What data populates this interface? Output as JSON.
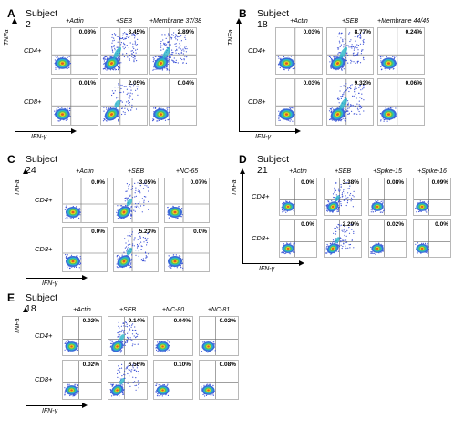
{
  "panels": [
    {
      "letter": "A",
      "subject": "Subject 2",
      "x_axis": "IFN-γ",
      "y_axis": "TNFa",
      "rows": [
        "CD4+",
        "CD8+"
      ],
      "columns": [
        "+Actin",
        "+SEB",
        "+Membrane 37/38"
      ],
      "percentages": [
        [
          "0.03%",
          "3.45%",
          "2.89%"
        ],
        [
          "0.01%",
          "2.05%",
          "0.04%"
        ]
      ],
      "densities": [
        [
          "low",
          "high",
          "high"
        ],
        [
          "low",
          "med",
          "low"
        ]
      ]
    },
    {
      "letter": "B",
      "subject": "Subject 18",
      "x_axis": "IFN-γ",
      "y_axis": "TNFa",
      "rows": [
        "CD4+",
        "CD8+"
      ],
      "columns": [
        "+Actin",
        "+SEB",
        "+Membrane 44/45"
      ],
      "percentages": [
        [
          "0.03%",
          "8.77%",
          "0.24%"
        ],
        [
          "0.03%",
          "9.32%",
          "0.06%"
        ]
      ],
      "densities": [
        [
          "low",
          "high",
          "low"
        ],
        [
          "low",
          "high",
          "low"
        ]
      ]
    },
    {
      "letter": "C",
      "subject": "Subject 24",
      "x_axis": "IFN-γ",
      "y_axis": "TNFa",
      "rows": [
        "CD4+",
        "CD8+"
      ],
      "columns": [
        "+Actin",
        "+SEB",
        "+NC-65"
      ],
      "percentages": [
        [
          "0.0%",
          "3.05%",
          "0.07%"
        ],
        [
          "0.0%",
          "5.23%",
          "0.0%"
        ]
      ],
      "densities": [
        [
          "low",
          "med",
          "low"
        ],
        [
          "low",
          "med",
          "low"
        ]
      ]
    },
    {
      "letter": "D",
      "subject": "Subject 21",
      "x_axis": "IFN-γ",
      "y_axis": "TNFa",
      "rows": [
        "CD4+",
        "CD8+"
      ],
      "columns": [
        "+Actin",
        "+SEB",
        "+Spike-15",
        "+Spike-16"
      ],
      "percentages": [
        [
          "0.0%",
          "3.38%",
          "0.08%",
          "0.09%"
        ],
        [
          "0.0%",
          "2.29%",
          "0.02%",
          "0.0%"
        ]
      ],
      "densities": [
        [
          "low",
          "med",
          "low",
          "low"
        ],
        [
          "low",
          "med",
          "low",
          "low"
        ]
      ]
    },
    {
      "letter": "E",
      "subject": "Subject 18",
      "x_axis": "IFN-γ",
      "y_axis": "TNFa",
      "rows": [
        "CD4+",
        "CD8+"
      ],
      "columns": [
        "+Actin",
        "+SEB",
        "+NC-80",
        "+NC-81"
      ],
      "percentages": [
        [
          "0.02%",
          "9.14%",
          "0.04%",
          "0.02%"
        ],
        [
          "0.02%",
          "6.56%",
          "0.10%",
          "0.08%"
        ]
      ],
      "densities": [
        [
          "low",
          "med",
          "low",
          "low"
        ],
        [
          "low",
          "med",
          "low",
          "low"
        ]
      ]
    }
  ]
}
